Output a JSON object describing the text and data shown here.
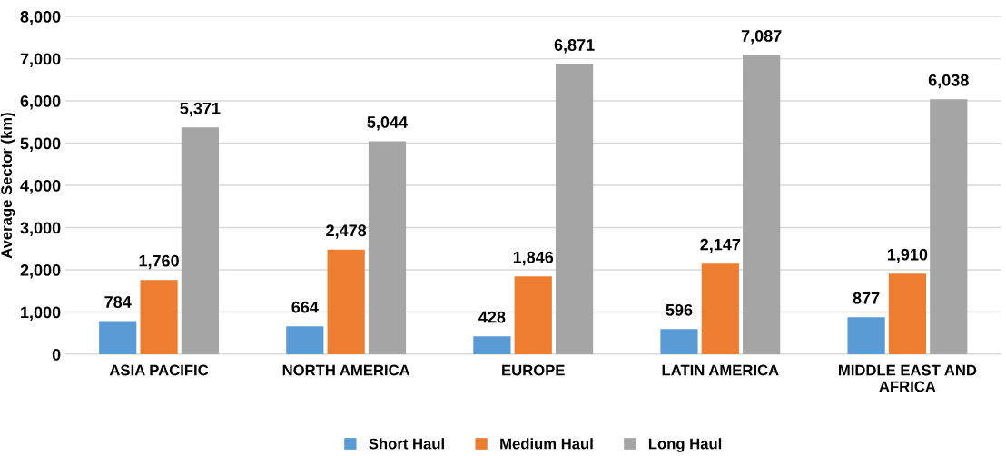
{
  "chart_data": {
    "type": "bar",
    "ylabel": "Average Sector (km)",
    "categories": [
      "ASIA PACIFIC",
      "NORTH AMERICA",
      "EUROPE",
      "LATIN AMERICA",
      "MIDDLE EAST AND\nAFRICA"
    ],
    "series": [
      {
        "name": "Short Haul",
        "color": "#5b9bd5",
        "values": [
          784,
          664,
          428,
          596,
          877
        ],
        "value_labels": [
          "784",
          "664",
          "428",
          "596",
          "877"
        ]
      },
      {
        "name": "Medium Haul",
        "color": "#ed7d31",
        "values": [
          1760,
          2478,
          1846,
          2147,
          1910
        ],
        "value_labels": [
          "1,760",
          "2,478",
          "1,846",
          "2,147",
          "1,910"
        ]
      },
      {
        "name": "Long Haul",
        "color": "#a5a5a5",
        "values": [
          5371,
          5044,
          6871,
          7087,
          6038
        ],
        "value_labels": [
          "5,371",
          "5,044",
          "6,871",
          "7,087",
          "6,038"
        ]
      }
    ],
    "ylim": [
      0,
      8000
    ],
    "yticks": [
      {
        "value": 0,
        "label": "0"
      },
      {
        "value": 1000,
        "label": "1,000"
      },
      {
        "value": 2000,
        "label": "2,000"
      },
      {
        "value": 3000,
        "label": "3,000"
      },
      {
        "value": 4000,
        "label": "4,000"
      },
      {
        "value": 5000,
        "label": "5,000"
      },
      {
        "value": 6000,
        "label": "6,000"
      },
      {
        "value": 7000,
        "label": "7,000"
      },
      {
        "value": 8000,
        "label": "8,000"
      }
    ],
    "grid": "y",
    "legend": "bottom"
  }
}
